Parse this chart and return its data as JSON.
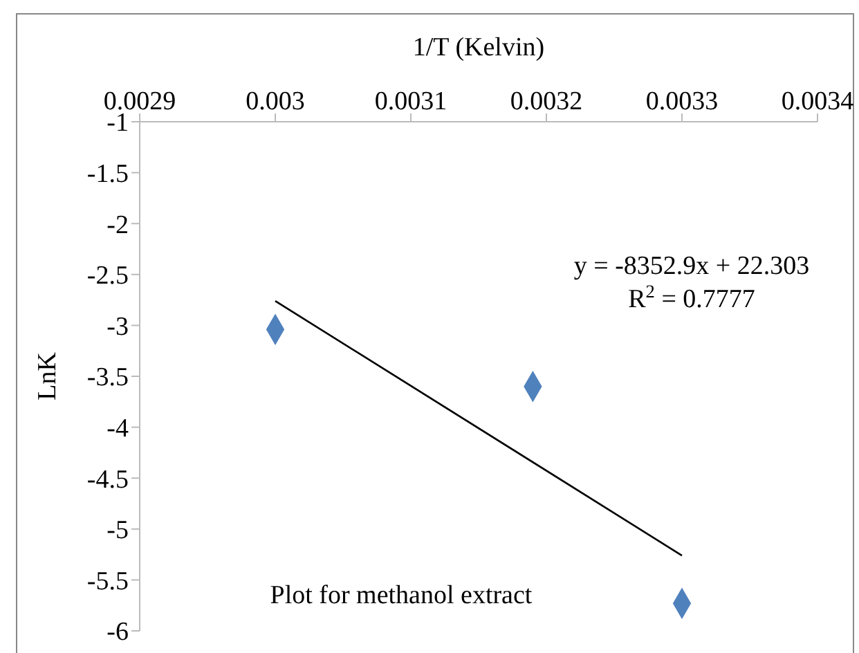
{
  "chart_data": {
    "type": "scatter",
    "xlabel": "1/T (Kelvin)",
    "ylabel": "LnK",
    "xlim": [
      0.0029,
      0.0034
    ],
    "xticks": [
      0.0029,
      0.003,
      0.0031,
      0.0032,
      0.0033,
      0.0034
    ],
    "ylim": [
      -6,
      -1
    ],
    "yticks": [
      -1,
      -1.5,
      -2,
      -2.5,
      -3,
      -3.5,
      -4,
      -4.5,
      -5,
      -5.5,
      -6
    ],
    "grid": false,
    "series": [
      {
        "color": "#4f81bd",
        "marker": "diamond",
        "x": [
          0.003,
          0.00319,
          0.0033
        ],
        "values": [
          -3.04,
          -3.6,
          -5.73
        ]
      },
      {
        "type": "line",
        "color": "#000000",
        "x": [
          0.003,
          0.0033
        ],
        "values": [
          -2.76,
          -5.26
        ]
      }
    ],
    "annotations": [
      "y = -8352.9x + 22.303",
      "R$^{2}$ = 0.7777",
      "Plot for methanol extract"
    ]
  }
}
